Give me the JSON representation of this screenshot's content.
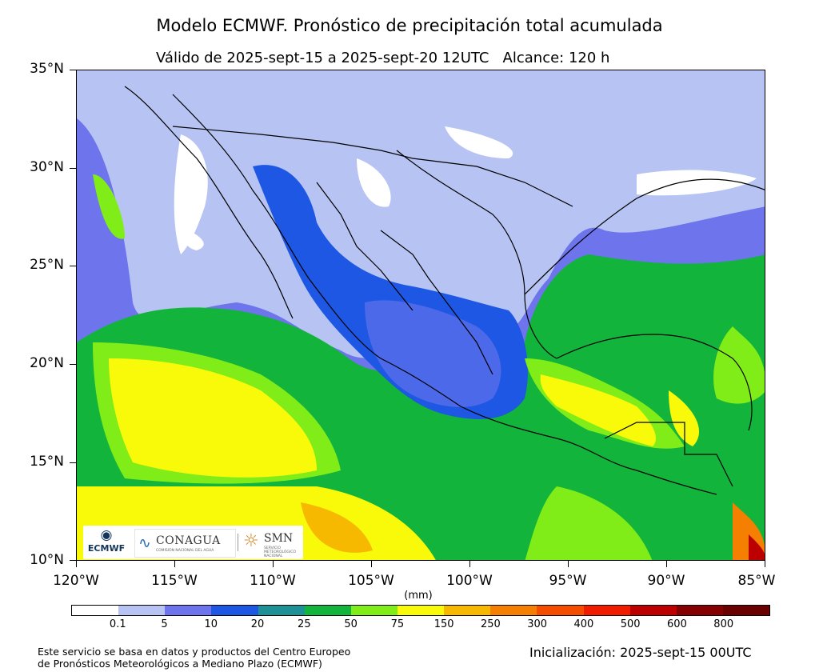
{
  "title": "Modelo ECMWF. Pronóstico de precipitación total acumulada",
  "subtitle": "Válido de 2025-sept-15 a 2025-sept-20 12UTC   Alcance: 120 h",
  "lat_ticks": [
    "35°N",
    "30°N",
    "25°N",
    "20°N",
    "15°N",
    "10°N"
  ],
  "lon_ticks": [
    "120°W",
    "115°W",
    "110°W",
    "105°W",
    "100°W",
    "95°W",
    "90°W",
    "85°W"
  ],
  "colorbar": {
    "units": "(mm)",
    "labels": [
      "0.1",
      "5",
      "10",
      "20",
      "25",
      "50",
      "75",
      "150",
      "250",
      "300",
      "400",
      "500",
      "600",
      "800"
    ],
    "colors": [
      "#ffffff",
      "#b7c4f3",
      "#6d74ec",
      "#1d57e4",
      "#1e9196",
      "#12b43b",
      "#80ed18",
      "#f8fa0a",
      "#f7b800",
      "#f57f00",
      "#f54d00",
      "#f01c00",
      "#bc0000",
      "#850000",
      "#6a0000"
    ]
  },
  "logos": {
    "ecmwf": "ECMWF",
    "conagua": "CONAGUA",
    "conagua_sub": "COMISIÓN NACIONAL DEL AGUA",
    "smn": "SMN",
    "smn_sub": "SERVICIO METEOROLÓGICO NACIONAL"
  },
  "footer": {
    "line1": "Este servicio se basa en datos y productos del Centro Europeo",
    "line2": "de Pronósticos Meteorológicos a Mediano Plazo (ECMWF)",
    "init": "Inicialización: 2025-sept-15 00UTC"
  }
}
